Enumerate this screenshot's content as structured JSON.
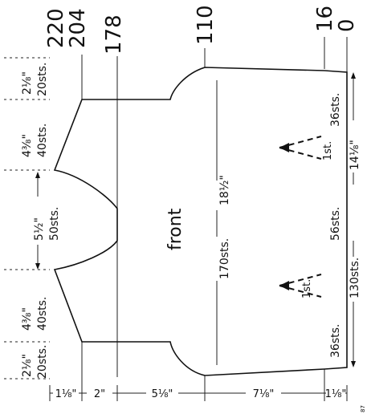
{
  "row_labels": {
    "r220": "220",
    "r204": "204",
    "r178": "178",
    "r110": "110",
    "r16": "16",
    "r0": "0"
  },
  "piece_label": "front",
  "body_measure": {
    "sts": "170sts.",
    "width": "18½\""
  },
  "width_sections": [
    {
      "inches": "2⅛\"",
      "sts": "20sts."
    },
    {
      "inches": "4⅜\"",
      "sts": "40sts."
    },
    {
      "inches": "5½\"",
      "sts": "50sts."
    },
    {
      "inches": "4⅜\"",
      "sts": "40sts."
    },
    {
      "inches": "2⅛\"",
      "sts": "20sts."
    }
  ],
  "lower_measures": {
    "upper_sts": "36sts.",
    "upper_width": "14⅛\"",
    "middle_sts": "56sts.",
    "lower_width": "130sts.",
    "lower_sts": "36sts.",
    "dart_label_top": "1st.",
    "dart_label_bottom": "1st."
  },
  "height_sections": [
    "1⅛\"",
    "2\"",
    "5⅛\"",
    "7⅛\"",
    "1⅛\""
  ],
  "corner_mark": "87"
}
